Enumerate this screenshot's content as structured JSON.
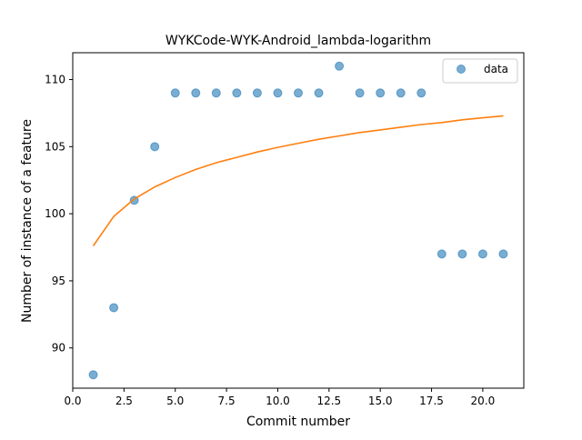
{
  "chart_data": {
    "type": "scatter",
    "title": "WYKCode-WYK-Android_lambda-logarithm",
    "xlabel": "Commit number",
    "ylabel": "Number of instance of a feature",
    "xlim": [
      0,
      22
    ],
    "ylim": [
      87,
      112
    ],
    "xticks": [
      0,
      2.5,
      5,
      7.5,
      10,
      12.5,
      15,
      17.5,
      20
    ],
    "xtick_labels": [
      "0.0",
      "2.5",
      "5.0",
      "7.5",
      "10.0",
      "12.5",
      "15.0",
      "17.5",
      "20.0"
    ],
    "yticks": [
      90,
      95,
      100,
      105,
      110
    ],
    "ytick_labels": [
      "90",
      "95",
      "100",
      "105",
      "110"
    ],
    "grid": false,
    "legend_position": "top-right",
    "series": [
      {
        "name": "data",
        "kind": "scatter",
        "color": "#1f77b4",
        "x": [
          1,
          2,
          3,
          4,
          5,
          6,
          7,
          8,
          9,
          10,
          11,
          12,
          13,
          14,
          15,
          16,
          17,
          18,
          19,
          20,
          21
        ],
        "y": [
          88,
          93,
          101,
          105,
          109,
          109,
          109,
          109,
          109,
          109,
          109,
          109,
          111,
          109,
          109,
          109,
          109,
          97,
          97,
          97,
          97
        ]
      },
      {
        "kind": "line",
        "color": "#ff7f0e",
        "x": [
          1,
          2,
          3,
          4,
          5,
          6,
          7,
          8,
          9,
          10,
          11,
          12,
          13,
          14,
          15,
          16,
          17,
          18,
          19,
          20,
          21
        ],
        "y": [
          97.6,
          99.8,
          101.1,
          102.0,
          102.7,
          103.3,
          103.8,
          104.2,
          104.6,
          104.95,
          105.25,
          105.55,
          105.8,
          106.05,
          106.25,
          106.45,
          106.65,
          106.8,
          107.0,
          107.15,
          107.3
        ]
      }
    ]
  }
}
